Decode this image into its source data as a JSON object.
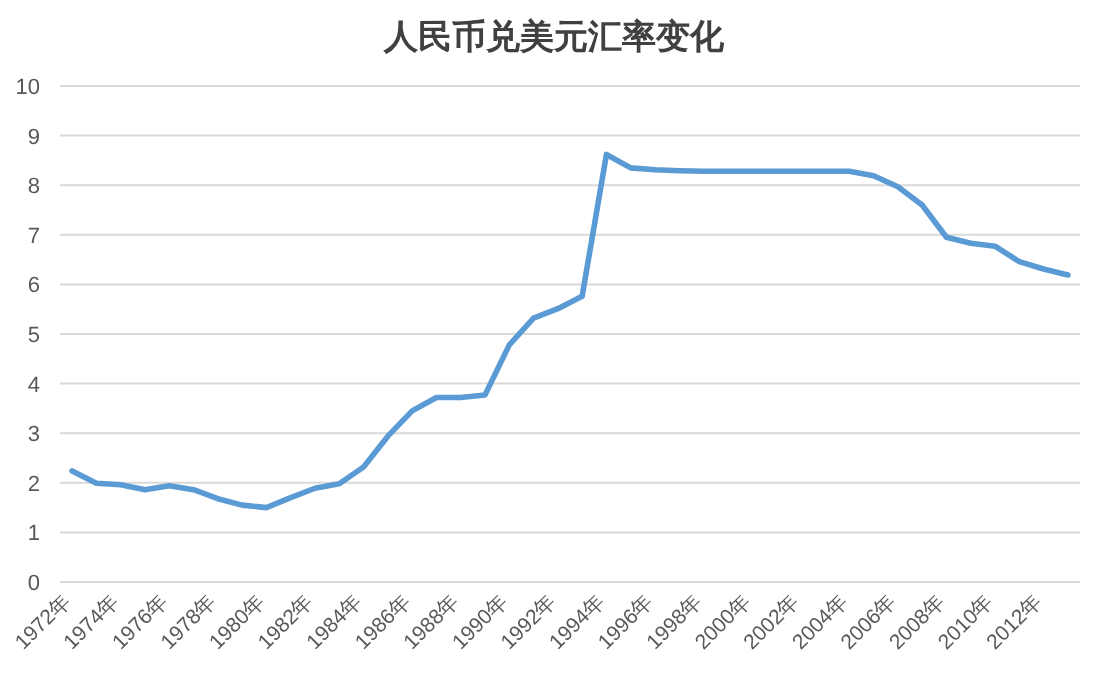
{
  "chart_data": {
    "type": "line",
    "title": "人民币兑美元汇率变化",
    "categories": [
      "1972年",
      null,
      "1974年",
      null,
      "1976年",
      null,
      "1978年",
      null,
      "1980年",
      null,
      "1982年",
      null,
      "1984年",
      null,
      "1986年",
      null,
      "1988年",
      null,
      "1990年",
      null,
      "1992年",
      null,
      "1994年",
      null,
      "1996年",
      null,
      "1998年",
      null,
      "2000年",
      null,
      "2002年",
      null,
      "2004年",
      null,
      "2006年",
      null,
      "2008年",
      null,
      "2010年",
      null,
      "2012年",
      null
    ],
    "values": [
      2.24,
      1.99,
      1.96,
      1.86,
      1.94,
      1.86,
      1.68,
      1.55,
      1.5,
      1.7,
      1.89,
      1.98,
      2.32,
      2.94,
      3.45,
      3.72,
      3.72,
      3.77,
      4.78,
      5.32,
      5.51,
      5.76,
      8.62,
      8.35,
      8.31,
      8.29,
      8.28,
      8.28,
      8.28,
      8.28,
      8.28,
      8.28,
      8.28,
      8.19,
      7.97,
      7.6,
      6.95,
      6.83,
      6.77,
      6.46,
      6.31,
      6.19
    ],
    "color": "#5b9bd5",
    "ylim": [
      0,
      10
    ],
    "yticks": [
      0,
      1,
      2,
      3,
      4,
      5,
      6,
      7,
      8,
      9,
      10
    ],
    "grid": "y"
  }
}
